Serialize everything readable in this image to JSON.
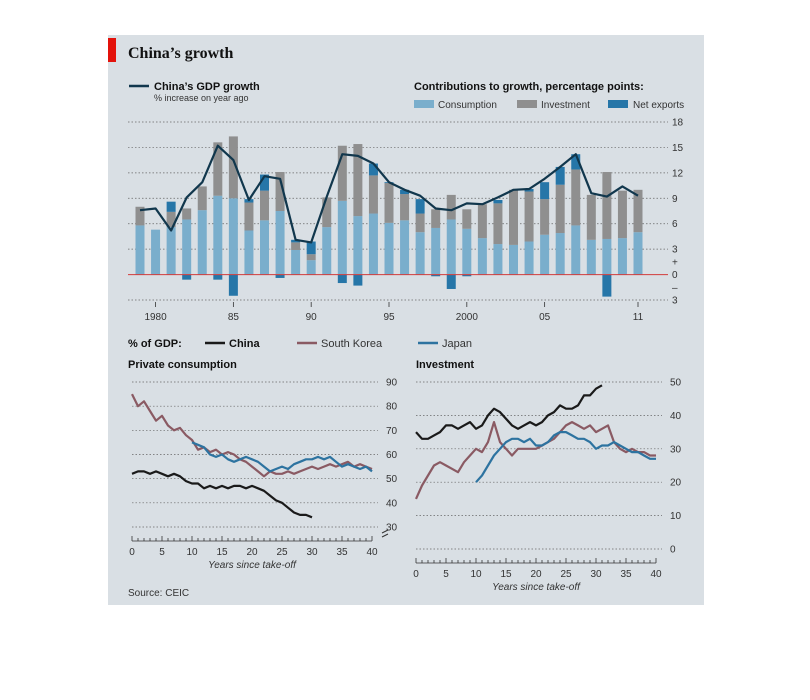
{
  "title": "China’s growth",
  "source": "Source: CEIC",
  "colors": {
    "consumption": "#7aaecc",
    "investment": "#8f8f8f",
    "net_exports": "#2676a8",
    "gdp_line": "#11374d",
    "china": "#1a1a1a",
    "south_korea": "#8a5a63",
    "japan": "#2d73a0",
    "zero_line": "#d23b3b"
  },
  "chart_data": [
    {
      "type": "bar",
      "subtype": "stacked-bar-with-line",
      "gdp_legend": "China’s GDP growth",
      "gdp_legend_sub": "% increase on year ago",
      "contrib_title": "Contributions to growth, percentage points:",
      "legend": [
        "Consumption",
        "Investment",
        "Net exports"
      ],
      "x": [
        1979,
        1980,
        1981,
        1982,
        1983,
        1984,
        1985,
        1986,
        1987,
        1988,
        1989,
        1990,
        1991,
        1992,
        1993,
        1994,
        1995,
        1996,
        1997,
        1998,
        1999,
        2000,
        2001,
        2002,
        2003,
        2004,
        2005,
        2006,
        2007,
        2008,
        2009,
        2010,
        2011
      ],
      "x_tick_labels": [
        "1980",
        "85",
        "90",
        "95",
        "2000",
        "05",
        "11"
      ],
      "x_tick_years": [
        1980,
        1985,
        1990,
        1995,
        2000,
        2005,
        2011
      ],
      "y_ticks": [
        "18",
        "15",
        "12",
        "9",
        "6",
        "3",
        "+",
        "0",
        "–",
        "3"
      ],
      "ylim": [
        -3,
        18
      ],
      "series": [
        {
          "name": "Consumption",
          "values": [
            5.8,
            5.3,
            5.6,
            6.5,
            7.6,
            9.3,
            9.0,
            5.2,
            6.4,
            7.5,
            2.9,
            1.7,
            5.6,
            8.7,
            6.9,
            7.2,
            6.1,
            6.4,
            5.0,
            5.5,
            6.5,
            5.4,
            4.3,
            3.6,
            3.5,
            3.9,
            4.7,
            4.9,
            5.8,
            4.1,
            4.2,
            4.3,
            5.0
          ]
        },
        {
          "name": "Investment",
          "values": [
            2.2,
            0.0,
            1.8,
            1.3,
            2.8,
            6.3,
            7.3,
            3.3,
            3.5,
            4.6,
            0.9,
            0.7,
            3.5,
            6.5,
            8.5,
            4.5,
            4.7,
            3.1,
            2.2,
            2.2,
            2.9,
            2.3,
            4.0,
            4.8,
            6.5,
            5.9,
            4.2,
            5.7,
            6.6,
            5.3,
            7.9,
            5.6,
            5.0
          ]
        },
        {
          "name": "Net exports",
          "values": [
            0.0,
            0.0,
            1.2,
            -0.6,
            0.0,
            -0.6,
            -2.5,
            0.4,
            1.9,
            -0.4,
            0.3,
            1.5,
            0.0,
            -1.0,
            -1.3,
            1.4,
            0.1,
            0.5,
            1.7,
            -0.2,
            -1.7,
            -0.2,
            0.0,
            0.4,
            0.0,
            0.3,
            2.0,
            2.1,
            1.8,
            0.0,
            -2.6,
            0.0,
            0.0
          ]
        },
        {
          "name": "China’s GDP growth",
          "values": [
            7.6,
            7.8,
            5.2,
            9.1,
            10.9,
            15.2,
            13.5,
            8.8,
            11.6,
            11.3,
            4.1,
            3.8,
            9.2,
            14.2,
            14.0,
            13.1,
            10.9,
            10.0,
            9.3,
            7.8,
            7.6,
            8.4,
            8.3,
            9.1,
            10.0,
            10.1,
            11.3,
            12.7,
            14.2,
            9.6,
            9.2,
            10.4,
            9.3
          ]
        }
      ]
    },
    {
      "type": "line",
      "header": "% of GDP:",
      "subtitle": "Private consumption",
      "xlabel": "Years since take-off",
      "xlim": [
        0,
        40
      ],
      "ylim": [
        30,
        90
      ],
      "x_ticks": [
        "0",
        "5",
        "10",
        "15",
        "20",
        "25",
        "30",
        "35",
        "40"
      ],
      "y_ticks": [
        "90",
        "80",
        "70",
        "60",
        "50",
        "40",
        "30"
      ],
      "series": [
        {
          "name": "China",
          "x": [
            0,
            1,
            2,
            3,
            4,
            5,
            6,
            7,
            8,
            9,
            10,
            11,
            12,
            13,
            14,
            15,
            16,
            17,
            18,
            19,
            20,
            21,
            22,
            23,
            24,
            25,
            26,
            27,
            28,
            29,
            30
          ],
          "values": [
            52,
            53,
            53,
            52,
            53,
            52,
            51,
            52,
            51,
            49,
            48,
            48,
            46,
            47,
            46,
            47,
            46,
            47,
            47,
            46,
            47,
            46,
            45,
            43,
            41,
            40,
            38,
            36,
            35,
            35,
            34
          ]
        },
        {
          "name": "South Korea",
          "x": [
            0,
            1,
            2,
            3,
            4,
            5,
            6,
            7,
            8,
            9,
            10,
            11,
            12,
            13,
            14,
            15,
            16,
            17,
            18,
            19,
            20,
            21,
            22,
            23,
            24,
            25,
            26,
            27,
            28,
            29,
            30,
            31,
            32,
            33,
            34,
            35,
            36,
            37,
            38,
            39,
            40
          ],
          "values": [
            85,
            80,
            82,
            78,
            74,
            76,
            72,
            70,
            71,
            68,
            66,
            62,
            63,
            61,
            62,
            60,
            61,
            60,
            58,
            57,
            55,
            53,
            51,
            53,
            52,
            52,
            53,
            52,
            53,
            54,
            55,
            54,
            55,
            56,
            55,
            56,
            57,
            55,
            56,
            55,
            54
          ]
        },
        {
          "name": "Japan",
          "x": [
            10,
            11,
            12,
            13,
            14,
            15,
            16,
            17,
            18,
            19,
            20,
            21,
            22,
            23,
            24,
            25,
            26,
            27,
            28,
            29,
            30,
            31,
            32,
            33,
            34,
            35,
            36,
            37,
            38,
            39,
            40
          ],
          "values": [
            65,
            64,
            63,
            60,
            59,
            60,
            58,
            57,
            58,
            59,
            58,
            57,
            55,
            53,
            54,
            55,
            54,
            56,
            57,
            58,
            58,
            59,
            58,
            59,
            57,
            55,
            56,
            55,
            54,
            55,
            53
          ]
        }
      ]
    },
    {
      "type": "line",
      "subtitle": "Investment",
      "xlabel": "Years since take-off",
      "xlim": [
        0,
        40
      ],
      "ylim": [
        0,
        50
      ],
      "x_ticks": [
        "0",
        "5",
        "10",
        "15",
        "20",
        "25",
        "30",
        "35",
        "40"
      ],
      "y_ticks": [
        "50",
        "40",
        "30",
        "20",
        "10",
        "0"
      ],
      "series": [
        {
          "name": "China",
          "x": [
            0,
            1,
            2,
            3,
            4,
            5,
            6,
            7,
            8,
            9,
            10,
            11,
            12,
            13,
            14,
            15,
            16,
            17,
            18,
            19,
            20,
            21,
            22,
            23,
            24,
            25,
            26,
            27,
            28,
            29,
            30,
            31
          ],
          "values": [
            35,
            33,
            33,
            34,
            35,
            37,
            37,
            36,
            37,
            38,
            36,
            37,
            40,
            42,
            41,
            39,
            37,
            36,
            37,
            38,
            37,
            38,
            40,
            41,
            43,
            42,
            42,
            43,
            46,
            46,
            48,
            49
          ]
        },
        {
          "name": "South Korea",
          "x": [
            0,
            1,
            2,
            3,
            4,
            5,
            6,
            7,
            8,
            9,
            10,
            11,
            12,
            13,
            14,
            15,
            16,
            17,
            18,
            19,
            20,
            21,
            22,
            23,
            24,
            25,
            26,
            27,
            28,
            29,
            30,
            31,
            32,
            33,
            34,
            35,
            36,
            37,
            38,
            39,
            40
          ],
          "values": [
            15,
            19,
            22,
            25,
            26,
            25,
            24,
            23,
            26,
            28,
            30,
            29,
            32,
            38,
            32,
            30,
            28,
            30,
            30,
            30,
            30,
            31,
            32,
            33,
            35,
            37,
            38,
            37,
            36,
            37,
            35,
            36,
            37,
            32,
            30,
            29,
            30,
            29,
            29,
            28,
            28
          ]
        },
        {
          "name": "Japan",
          "x": [
            10,
            11,
            12,
            13,
            14,
            15,
            16,
            17,
            18,
            19,
            20,
            21,
            22,
            23,
            24,
            25,
            26,
            27,
            28,
            29,
            30,
            31,
            32,
            33,
            34,
            35,
            36,
            37,
            38,
            39,
            40
          ],
          "values": [
            20,
            22,
            25,
            28,
            30,
            32,
            33,
            33,
            32,
            33,
            31,
            31,
            32,
            34,
            35,
            35,
            34,
            33,
            33,
            32,
            30,
            31,
            31,
            32,
            31,
            30,
            29,
            29,
            28,
            27,
            27
          ]
        }
      ]
    }
  ]
}
